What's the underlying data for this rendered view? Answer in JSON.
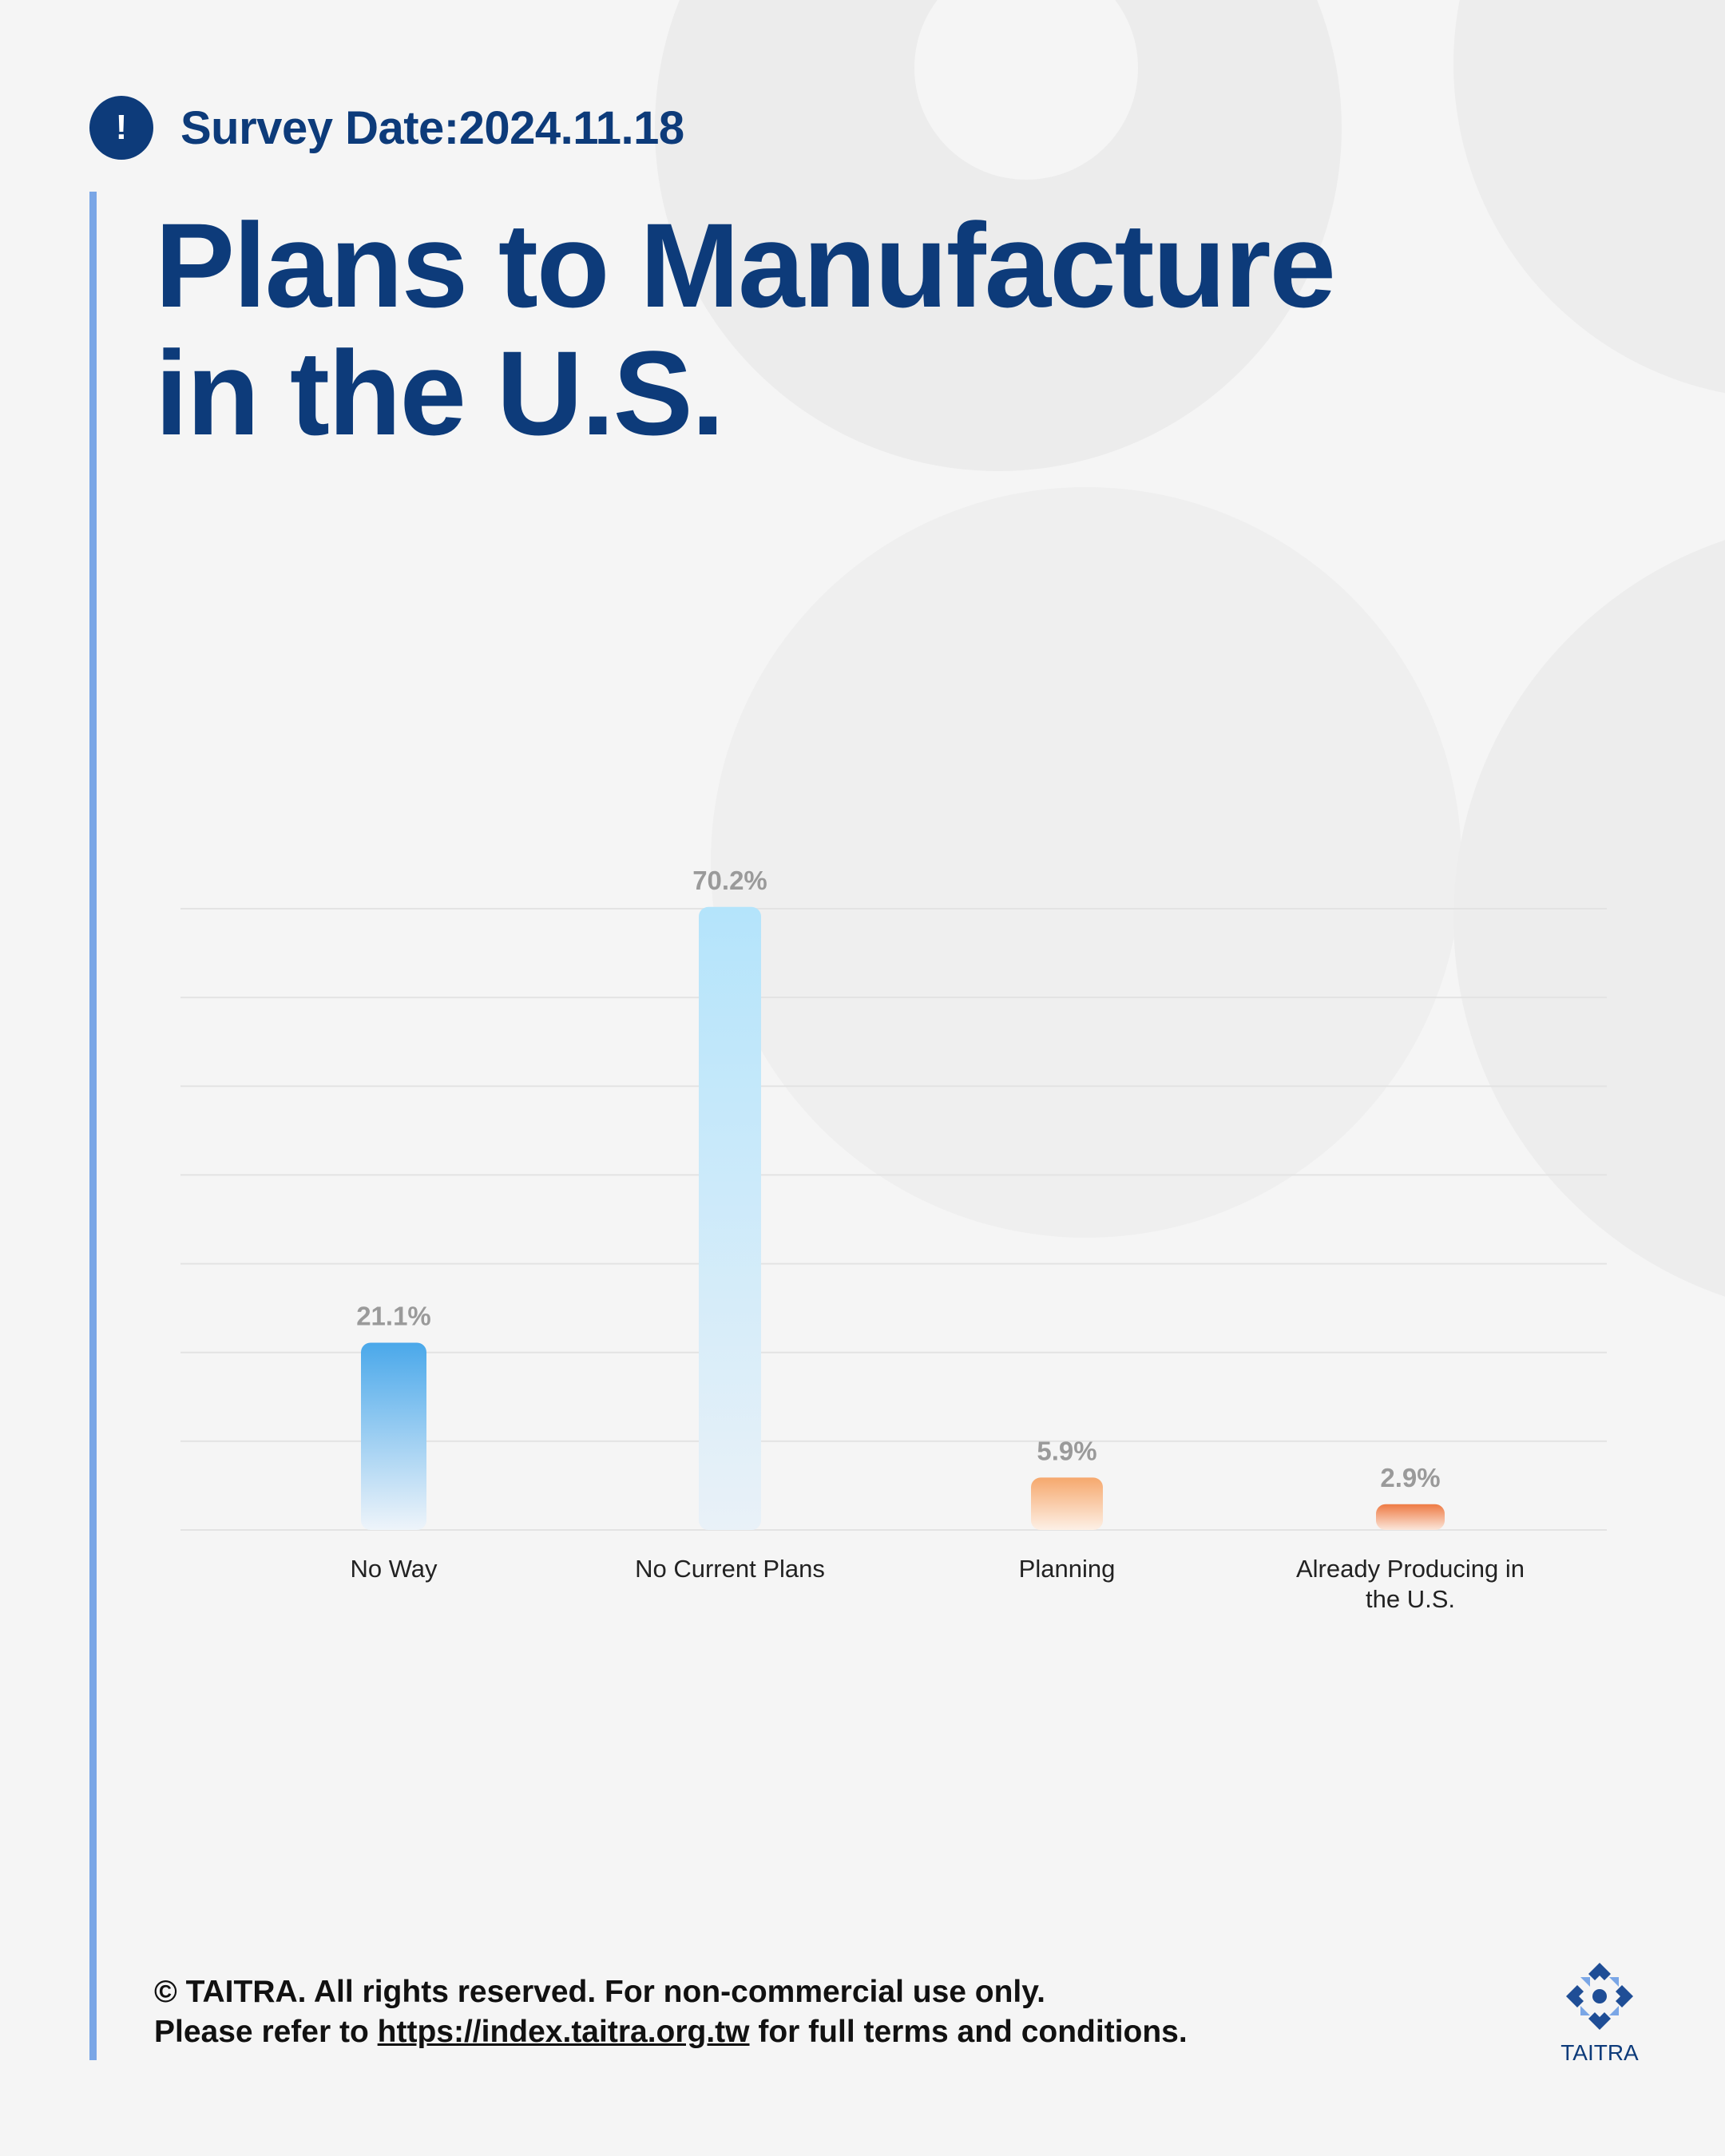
{
  "header": {
    "alert_glyph": "!",
    "survey_date": "Survey Date:2024.11.18",
    "title_line1": "Plans to Manufacture",
    "title_line2": "in the U.S."
  },
  "chart_data": {
    "type": "bar",
    "categories": [
      "No Way",
      "No Current Plans",
      "Planning",
      "Already Producing in the U.S."
    ],
    "values": [
      21.1,
      70.2,
      5.9,
      2.9
    ],
    "value_labels": [
      "21.1%",
      "70.2%",
      "5.9%",
      "2.9%"
    ],
    "category_lines": [
      [
        "No Way"
      ],
      [
        "No Current Plans"
      ],
      [
        "Planning"
      ],
      [
        "Already Producing in",
        "the U.S."
      ]
    ],
    "title": "Plans to Manufacture in the U.S.",
    "xlabel": "",
    "ylabel": "",
    "ylim": [
      0,
      70
    ],
    "grid": true,
    "legend": "none",
    "colors": {
      "blue_dark": "#4aa8ea",
      "blue_light": "#b4e4fb",
      "blue_fade": "#e9f1f8",
      "orange": "#f6a86d",
      "orange_dark": "#ee7a43",
      "orange_fade": "#fdf0e6"
    }
  },
  "footer": {
    "line1": "© TAITRA. All rights reserved. For non-commercial use only.",
    "line2_prefix": "Please refer to ",
    "line2_link": "https://index.taitra.org.tw",
    "line2_suffix": " for full terms and conditions."
  },
  "logo": {
    "icon": "taitra-logo-icon",
    "text": "TAITRA"
  }
}
